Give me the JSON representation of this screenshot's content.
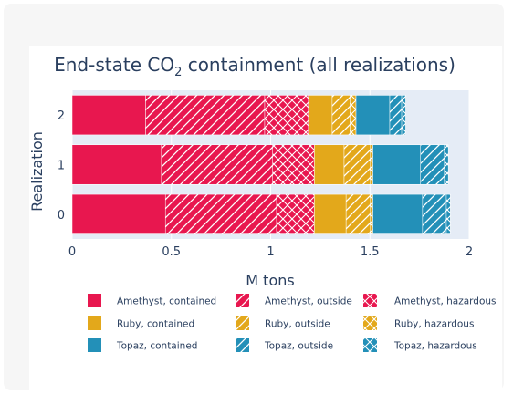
{
  "chart_data": {
    "type": "bar",
    "orientation": "horizontal",
    "barmode": "stack",
    "title": "End-state CO",
    "title_sub": "2",
    "title_rest": " containment (all realizations)",
    "xlabel": "M tons",
    "ylabel": "Realization",
    "xlim": [
      0,
      2
    ],
    "x_ticks": [
      "0",
      "0.5",
      "1",
      "1.5",
      "2"
    ],
    "x_tick_values": [
      0,
      0.5,
      1,
      1.5,
      2
    ],
    "categories": [
      "0",
      "1",
      "2"
    ],
    "series": [
      {
        "name": "Amethyst, contained",
        "color": "#e8174f",
        "pattern": "solid",
        "values": [
          0.47,
          0.45,
          0.37
        ]
      },
      {
        "name": "Amethyst, outside",
        "color": "#e8174f",
        "pattern": "slash",
        "values": [
          0.56,
          0.56,
          0.6
        ]
      },
      {
        "name": "Amethyst, hazardous",
        "color": "#e8174f",
        "pattern": "cross",
        "values": [
          0.19,
          0.21,
          0.22
        ]
      },
      {
        "name": "Ruby, contained",
        "color": "#e3a81b",
        "pattern": "solid",
        "values": [
          0.16,
          0.15,
          0.12
        ]
      },
      {
        "name": "Ruby, outside",
        "color": "#e3a81b",
        "pattern": "slash",
        "values": [
          0.12,
          0.13,
          0.09
        ]
      },
      {
        "name": "Ruby, hazardous",
        "color": "#e3a81b",
        "pattern": "cross",
        "values": [
          0.015,
          0.015,
          0.03
        ]
      },
      {
        "name": "Topaz, contained",
        "color": "#2390b8",
        "pattern": "solid",
        "values": [
          0.25,
          0.24,
          0.17
        ]
      },
      {
        "name": "Topaz, outside",
        "color": "#2390b8",
        "pattern": "slash",
        "values": [
          0.12,
          0.12,
          0.06
        ]
      },
      {
        "name": "Topaz, hazardous",
        "color": "#2390b8",
        "pattern": "cross",
        "values": [
          0.02,
          0.02,
          0.02
        ]
      }
    ],
    "plot_background": "#e5ecf6",
    "grid": true,
    "legend_position": "bottom"
  }
}
